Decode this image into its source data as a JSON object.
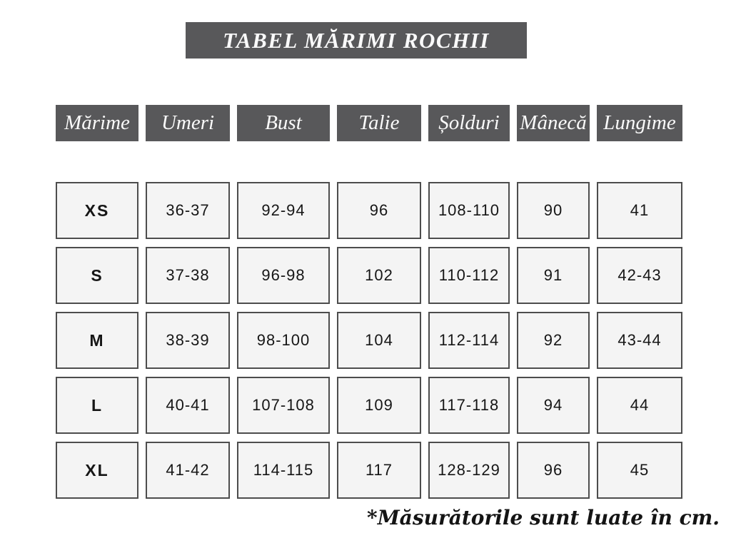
{
  "chart_data": {
    "type": "table",
    "title": "TABEL MĂRIMI ROCHII",
    "columns": [
      "Mărime",
      "Umeri",
      "Bust",
      "Talie",
      "Șolduri",
      "Mânecă",
      "Lungime"
    ],
    "rows": [
      [
        "XS",
        "36-37",
        "92-94",
        "96",
        "108-110",
        "90",
        "41"
      ],
      [
        "S",
        "37-38",
        "96-98",
        "102",
        "110-112",
        "91",
        "42-43"
      ],
      [
        "M",
        "38-39",
        "98-100",
        "104",
        "112-114",
        "92",
        "43-44"
      ],
      [
        "L",
        "40-41",
        "107-108",
        "109",
        "117-118",
        "94",
        "44"
      ],
      [
        "XL",
        "41-42",
        "114-115",
        "117",
        "128-129",
        "96",
        "45"
      ]
    ],
    "note": "*Măsurătorile sunt luate în cm."
  },
  "colors": {
    "header_bg": "#58585a",
    "header_text": "#fafafa",
    "cell_bg": "#f4f4f4",
    "cell_border": "#4d4d4d",
    "cell_text": "#161616",
    "page_bg": "#ffffff",
    "footnote_text": "#141414"
  }
}
